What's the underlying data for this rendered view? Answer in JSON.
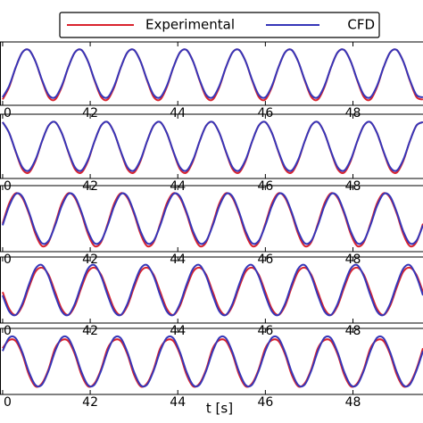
{
  "chart_data": [
    {
      "type": "line",
      "xlim": [
        39.94,
        49.6
      ],
      "ylim": [
        -1.3,
        1.3
      ],
      "xticks": [
        {
          "value": 40,
          "label": "0"
        },
        42,
        44,
        46,
        48
      ],
      "legend": "top",
      "x": [
        40,
        40.15,
        40.3,
        40.45,
        40.6,
        40.75,
        40.9,
        41.05,
        41.2,
        41.35,
        41.5,
        41.65,
        41.8,
        41.95,
        42.1,
        42.25,
        42.4,
        42.55,
        42.7,
        42.85,
        43,
        43.15,
        43.3,
        43.45,
        43.6,
        43.75,
        43.9,
        44.05,
        44.2,
        44.35,
        44.5,
        44.65,
        44.8,
        44.95,
        45.1,
        45.25,
        45.4,
        45.55,
        45.7,
        45.85,
        46,
        46.15,
        46.3,
        46.45,
        46.6,
        46.75,
        46.9,
        47.05,
        47.2,
        47.35,
        47.5,
        47.65,
        47.8,
        47.95,
        48.1,
        48.25,
        48.4,
        48.55,
        48.7,
        48.85,
        49,
        49.15,
        49.3,
        49.45,
        49.6
      ],
      "series": [
        {
          "name": "Experimental",
          "color": "#d9232e",
          "values": [
            -1.06,
            -0.55,
            0.26,
            0.87,
            0.97,
            0.5,
            -0.29,
            -0.96,
            -1.06,
            -0.55,
            0.26,
            0.87,
            0.97,
            0.5,
            -0.29,
            -0.96,
            -1.06,
            -0.55,
            0.26,
            0.87,
            0.97,
            0.5,
            -0.29,
            -0.96,
            -1.06,
            -0.55,
            0.26,
            0.87,
            0.97,
            0.5,
            -0.29,
            -0.96,
            -1.06,
            -0.55,
            0.26,
            0.87,
            0.97,
            0.5,
            -0.29,
            -0.96,
            -1.06,
            -0.55,
            0.26,
            0.87,
            0.97,
            0.5,
            -0.29,
            -0.96,
            -1.06,
            -0.55,
            0.26,
            0.87,
            0.97,
            0.5,
            -0.29,
            -0.96,
            -1.06,
            -0.55,
            0.26,
            0.87,
            0.97,
            0.5,
            -0.29,
            -0.96,
            -1.06
          ]
        },
        {
          "name": "CFD",
          "color": "#3636b8",
          "values": [
            -0.97,
            -0.5,
            0.26,
            0.87,
            0.97,
            0.5,
            -0.26,
            -0.87,
            -0.97,
            -0.5,
            0.26,
            0.87,
            0.97,
            0.5,
            -0.26,
            -0.87,
            -0.97,
            -0.5,
            0.26,
            0.87,
            0.97,
            0.5,
            -0.26,
            -0.87,
            -0.97,
            -0.5,
            0.26,
            0.87,
            0.97,
            0.5,
            -0.26,
            -0.87,
            -0.97,
            -0.5,
            0.26,
            0.87,
            0.97,
            0.5,
            -0.26,
            -0.87,
            -0.97,
            -0.5,
            0.26,
            0.87,
            0.97,
            0.5,
            -0.26,
            -0.87,
            -0.97,
            -0.5,
            0.26,
            0.87,
            0.97,
            0.5,
            -0.26,
            -0.87,
            -0.97,
            -0.5,
            0.26,
            0.87,
            0.97,
            0.5,
            -0.26,
            -0.87,
            -0.97
          ]
        }
      ]
    },
    {
      "type": "line",
      "xlim": [
        39.94,
        49.6
      ],
      "ylim": [
        -1.3,
        1.3
      ],
      "xticks": [
        {
          "value": 40,
          "label": "0"
        },
        42,
        44,
        46,
        48
      ],
      "x": [
        40,
        40.15,
        40.3,
        40.45,
        40.6,
        40.75,
        40.9,
        41.05,
        41.2,
        41.35,
        41.5,
        41.65,
        41.8,
        41.95,
        42.1,
        42.25,
        42.4,
        42.55,
        42.7,
        42.85,
        43,
        43.15,
        43.3,
        43.45,
        43.6,
        43.75,
        43.9,
        44.05,
        44.2,
        44.35,
        44.5,
        44.65,
        44.8,
        44.95,
        45.1,
        45.25,
        45.4,
        45.55,
        45.7,
        45.85,
        46,
        46.15,
        46.3,
        46.45,
        46.6,
        46.75,
        46.9,
        47.05,
        47.2,
        47.35,
        47.5,
        47.65,
        47.8,
        47.95,
        48.1,
        48.25,
        48.4,
        48.55,
        48.7,
        48.85,
        49,
        49.15,
        49.3,
        49.45,
        49.6
      ],
      "series": [
        {
          "color": "#d9232e",
          "values": [
            0.98,
            0.54,
            -0.23,
            -0.92,
            -1.06,
            -0.59,
            0.21,
            0.84,
            0.98,
            0.54,
            -0.23,
            -0.92,
            -1.06,
            -0.59,
            0.21,
            0.84,
            0.98,
            0.54,
            -0.23,
            -0.92,
            -1.06,
            -0.59,
            0.21,
            0.84,
            0.98,
            0.54,
            -0.23,
            -0.92,
            -1.06,
            -0.59,
            0.21,
            0.84,
            0.98,
            0.54,
            -0.23,
            -0.92,
            -1.06,
            -0.59,
            0.21,
            0.84,
            0.98,
            0.54,
            -0.23,
            -0.92,
            -1.06,
            -0.59,
            0.21,
            0.84,
            0.98,
            0.54,
            -0.23,
            -0.92,
            -1.06,
            -0.59,
            0.21,
            0.84,
            0.98,
            0.54,
            -0.23,
            -0.92,
            -1.06,
            -0.59,
            0.21,
            0.84,
            0.98
          ]
        },
        {
          "color": "#3636b8",
          "values": [
            0.98,
            0.54,
            -0.21,
            -0.84,
            -0.98,
            -0.54,
            0.21,
            0.84,
            0.98,
            0.54,
            -0.21,
            -0.84,
            -0.98,
            -0.54,
            0.21,
            0.84,
            0.98,
            0.54,
            -0.21,
            -0.84,
            -0.98,
            -0.54,
            0.21,
            0.84,
            0.98,
            0.54,
            -0.21,
            -0.84,
            -0.98,
            -0.54,
            0.21,
            0.84,
            0.98,
            0.54,
            -0.21,
            -0.84,
            -0.98,
            -0.54,
            0.21,
            0.84,
            0.98,
            0.54,
            -0.21,
            -0.84,
            -0.98,
            -0.54,
            0.21,
            0.84,
            0.98,
            0.54,
            -0.21,
            -0.84,
            -0.98,
            -0.54,
            0.21,
            0.84,
            0.98,
            0.54,
            -0.21,
            -0.84,
            -0.98,
            -0.54,
            0.21,
            0.84,
            0.98
          ]
        }
      ]
    },
    {
      "type": "line",
      "xlim": [
        39.94,
        49.6
      ],
      "ylim": [
        -1.3,
        1.3
      ],
      "xticks": [
        {
          "value": 40,
          "label": "0"
        },
        42,
        44,
        46,
        48
      ],
      "x": [
        40,
        40.15,
        40.3,
        40.45,
        40.6,
        40.75,
        40.9,
        41.05,
        41.2,
        41.35,
        41.5,
        41.65,
        41.8,
        41.95,
        42.1,
        42.25,
        42.4,
        42.55,
        42.7,
        42.85,
        43,
        43.15,
        43.3,
        43.45,
        43.6,
        43.75,
        43.9,
        44.05,
        44.2,
        44.35,
        44.5,
        44.65,
        44.8,
        44.95,
        45.1,
        45.25,
        45.4,
        45.55,
        45.7,
        45.85,
        46,
        46.15,
        46.3,
        46.45,
        46.6,
        46.75,
        46.9,
        47.05,
        47.2,
        47.35,
        47.5,
        47.65,
        47.8,
        47.95,
        48.1,
        48.25,
        48.4,
        48.55,
        48.7,
        48.85,
        49,
        49.15,
        49.3,
        49.45,
        49.6
      ],
      "series": [
        {
          "color": "#d9232e",
          "values": [
            -0.2,
            0.6,
            1.0,
            0.82,
            0.2,
            -0.6,
            -1.08,
            -0.92,
            -0.2,
            0.6,
            1.0,
            0.82,
            0.2,
            -0.6,
            -1.08,
            -0.92,
            -0.2,
            0.6,
            1.0,
            0.82,
            0.2,
            -0.6,
            -1.08,
            -0.92,
            -0.2,
            0.6,
            1.0,
            0.82,
            0.2,
            -0.6,
            -1.08,
            -0.92,
            -0.2,
            0.6,
            1.0,
            0.82,
            0.2,
            -0.6,
            -1.08,
            -0.92,
            -0.2,
            0.6,
            1.0,
            0.82,
            0.2,
            -0.6,
            -1.08,
            -0.92,
            -0.2,
            0.6,
            1.0,
            0.82,
            0.2,
            -0.6,
            -1.08,
            -0.92,
            -0.2,
            0.6,
            1.0,
            0.82,
            0.2,
            -0.6,
            -1.08,
            -0.92,
            -0.2
          ]
        },
        {
          "color": "#3636b8",
          "values": [
            -0.26,
            0.5,
            0.97,
            0.87,
            0.26,
            -0.5,
            -0.97,
            -0.87,
            -0.26,
            0.5,
            0.97,
            0.87,
            0.26,
            -0.5,
            -0.97,
            -0.87,
            -0.26,
            0.5,
            0.97,
            0.87,
            0.26,
            -0.5,
            -0.97,
            -0.87,
            -0.26,
            0.5,
            0.97,
            0.87,
            0.26,
            -0.5,
            -0.97,
            -0.87,
            -0.26,
            0.5,
            0.97,
            0.87,
            0.26,
            -0.5,
            -0.97,
            -0.87,
            -0.26,
            0.5,
            0.97,
            0.87,
            0.26,
            -0.5,
            -0.97,
            -0.87,
            -0.26,
            0.5,
            0.97,
            0.87,
            0.26,
            -0.5,
            -0.97,
            -0.87,
            -0.26,
            0.5,
            0.97,
            0.87,
            0.26,
            -0.5,
            -0.97,
            -0.87,
            -0.26
          ]
        }
      ]
    },
    {
      "type": "line",
      "xlim": [
        39.94,
        49.6
      ],
      "ylim": [
        -1.3,
        1.3
      ],
      "xticks": [
        {
          "value": 40,
          "label": "0"
        },
        42,
        44,
        46,
        48
      ],
      "x": [
        40,
        40.15,
        40.3,
        40.45,
        40.6,
        40.75,
        40.9,
        41.05,
        41.2,
        41.35,
        41.5,
        41.65,
        41.8,
        41.95,
        42.1,
        42.25,
        42.4,
        42.55,
        42.7,
        42.85,
        43,
        43.15,
        43.3,
        43.45,
        43.6,
        43.75,
        43.9,
        44.05,
        44.2,
        44.35,
        44.5,
        44.65,
        44.8,
        44.95,
        45.1,
        45.25,
        45.4,
        45.55,
        45.7,
        45.85,
        46,
        46.15,
        46.3,
        46.45,
        46.6,
        46.75,
        46.9,
        47.05,
        47.2,
        47.35,
        47.5,
        47.65,
        47.8,
        47.95,
        48.1,
        48.25,
        48.4,
        48.55,
        48.7,
        48.85,
        49,
        49.15,
        49.3,
        49.45,
        49.6
      ],
      "series": [
        {
          "color": "#d9232e",
          "values": [
            -0.08,
            -0.74,
            -0.98,
            -0.62,
            0.1,
            0.72,
            0.88,
            0.6,
            -0.08,
            -0.74,
            -0.98,
            -0.62,
            0.1,
            0.72,
            0.88,
            0.6,
            -0.08,
            -0.74,
            -0.98,
            -0.62,
            0.1,
            0.72,
            0.88,
            0.6,
            -0.08,
            -0.74,
            -0.98,
            -0.62,
            0.1,
            0.72,
            0.88,
            0.6,
            -0.08,
            -0.74,
            -0.98,
            -0.62,
            0.1,
            0.72,
            0.88,
            0.6,
            -0.08,
            -0.74,
            -0.98,
            -0.62,
            0.1,
            0.72,
            0.88,
            0.6,
            -0.08,
            -0.74,
            -0.98,
            -0.62,
            0.1,
            0.72,
            0.88,
            0.6,
            -0.08,
            -0.74,
            -0.98,
            -0.62,
            0.1,
            0.72,
            0.88,
            0.6,
            -0.08
          ]
        },
        {
          "color": "#3636b8",
          "values": [
            -0.21,
            -0.84,
            -0.98,
            -0.54,
            0.21,
            0.84,
            0.98,
            0.54,
            -0.21,
            -0.84,
            -0.98,
            -0.54,
            0.21,
            0.84,
            0.98,
            0.54,
            -0.21,
            -0.84,
            -0.98,
            -0.54,
            0.21,
            0.84,
            0.98,
            0.54,
            -0.21,
            -0.84,
            -0.98,
            -0.54,
            0.21,
            0.84,
            0.98,
            0.54,
            -0.21,
            -0.84,
            -0.98,
            -0.54,
            0.21,
            0.84,
            0.98,
            0.54,
            -0.21,
            -0.84,
            -0.98,
            -0.54,
            0.21,
            0.84,
            0.98,
            0.54,
            -0.21,
            -0.84,
            -0.98,
            -0.54,
            0.21,
            0.84,
            0.98,
            0.54,
            -0.21,
            -0.84,
            -0.98,
            -0.54,
            0.21,
            0.84,
            0.98,
            0.54,
            -0.21
          ]
        }
      ]
    },
    {
      "type": "line",
      "xlim": [
        39.94,
        49.6
      ],
      "ylim": [
        -1.3,
        1.3
      ],
      "xticks": [
        {
          "value": 40,
          "label": "0"
        },
        42,
        44,
        46,
        48
      ],
      "xlabel": "t [s]",
      "x": [
        40,
        40.15,
        40.3,
        40.45,
        40.6,
        40.75,
        40.9,
        41.05,
        41.2,
        41.35,
        41.5,
        41.65,
        41.8,
        41.95,
        42.1,
        42.25,
        42.4,
        42.55,
        42.7,
        42.85,
        43,
        43.15,
        43.3,
        43.45,
        43.6,
        43.75,
        43.9,
        44.05,
        44.2,
        44.35,
        44.5,
        44.65,
        44.8,
        44.95,
        45.1,
        45.25,
        45.4,
        45.55,
        45.7,
        45.85,
        46,
        46.15,
        46.3,
        46.45,
        46.6,
        46.75,
        46.9,
        47.05,
        47.2,
        47.35,
        47.5,
        47.65,
        47.8,
        47.95,
        48.1,
        48.25,
        48.4,
        48.55,
        48.7,
        48.85,
        49,
        49.15,
        49.3,
        49.45,
        49.6
      ],
      "series": [
        {
          "color": "#d9232e",
          "values": [
            0.52,
            0.84,
            0.8,
            0.28,
            -0.52,
            -0.98,
            -0.86,
            -0.3,
            0.52,
            0.84,
            0.8,
            0.28,
            -0.52,
            -0.98,
            -0.86,
            -0.3,
            0.52,
            0.84,
            0.8,
            0.28,
            -0.52,
            -0.98,
            -0.86,
            -0.3,
            0.52,
            0.84,
            0.8,
            0.28,
            -0.52,
            -0.98,
            -0.86,
            -0.3,
            0.52,
            0.84,
            0.8,
            0.28,
            -0.52,
            -0.98,
            -0.86,
            -0.3,
            0.52,
            0.84,
            0.8,
            0.28,
            -0.52,
            -0.98,
            -0.86,
            -0.3,
            0.52,
            0.84,
            0.8,
            0.28,
            -0.52,
            -0.98,
            -0.86,
            -0.3,
            0.52,
            0.84,
            0.8,
            0.28,
            -0.52,
            -0.98,
            -0.86,
            -0.3,
            0.52
          ]
        },
        {
          "color": "#3636b8",
          "values": [
            0.41,
            0.93,
            0.91,
            0.36,
            -0.41,
            -0.93,
            -0.91,
            -0.36,
            0.41,
            0.93,
            0.91,
            0.36,
            -0.41,
            -0.93,
            -0.91,
            -0.36,
            0.41,
            0.93,
            0.91,
            0.36,
            -0.41,
            -0.93,
            -0.91,
            -0.36,
            0.41,
            0.93,
            0.91,
            0.36,
            -0.41,
            -0.93,
            -0.91,
            -0.36,
            0.41,
            0.93,
            0.91,
            0.36,
            -0.41,
            -0.93,
            -0.91,
            -0.36,
            0.41,
            0.93,
            0.91,
            0.36,
            -0.41,
            -0.93,
            -0.91,
            -0.36,
            0.41,
            0.93,
            0.91,
            0.36,
            -0.41,
            -0.93,
            -0.91,
            -0.36,
            0.41,
            0.93,
            0.91,
            0.36,
            -0.41,
            -0.93,
            -0.91,
            -0.36,
            0.41
          ]
        }
      ]
    }
  ]
}
